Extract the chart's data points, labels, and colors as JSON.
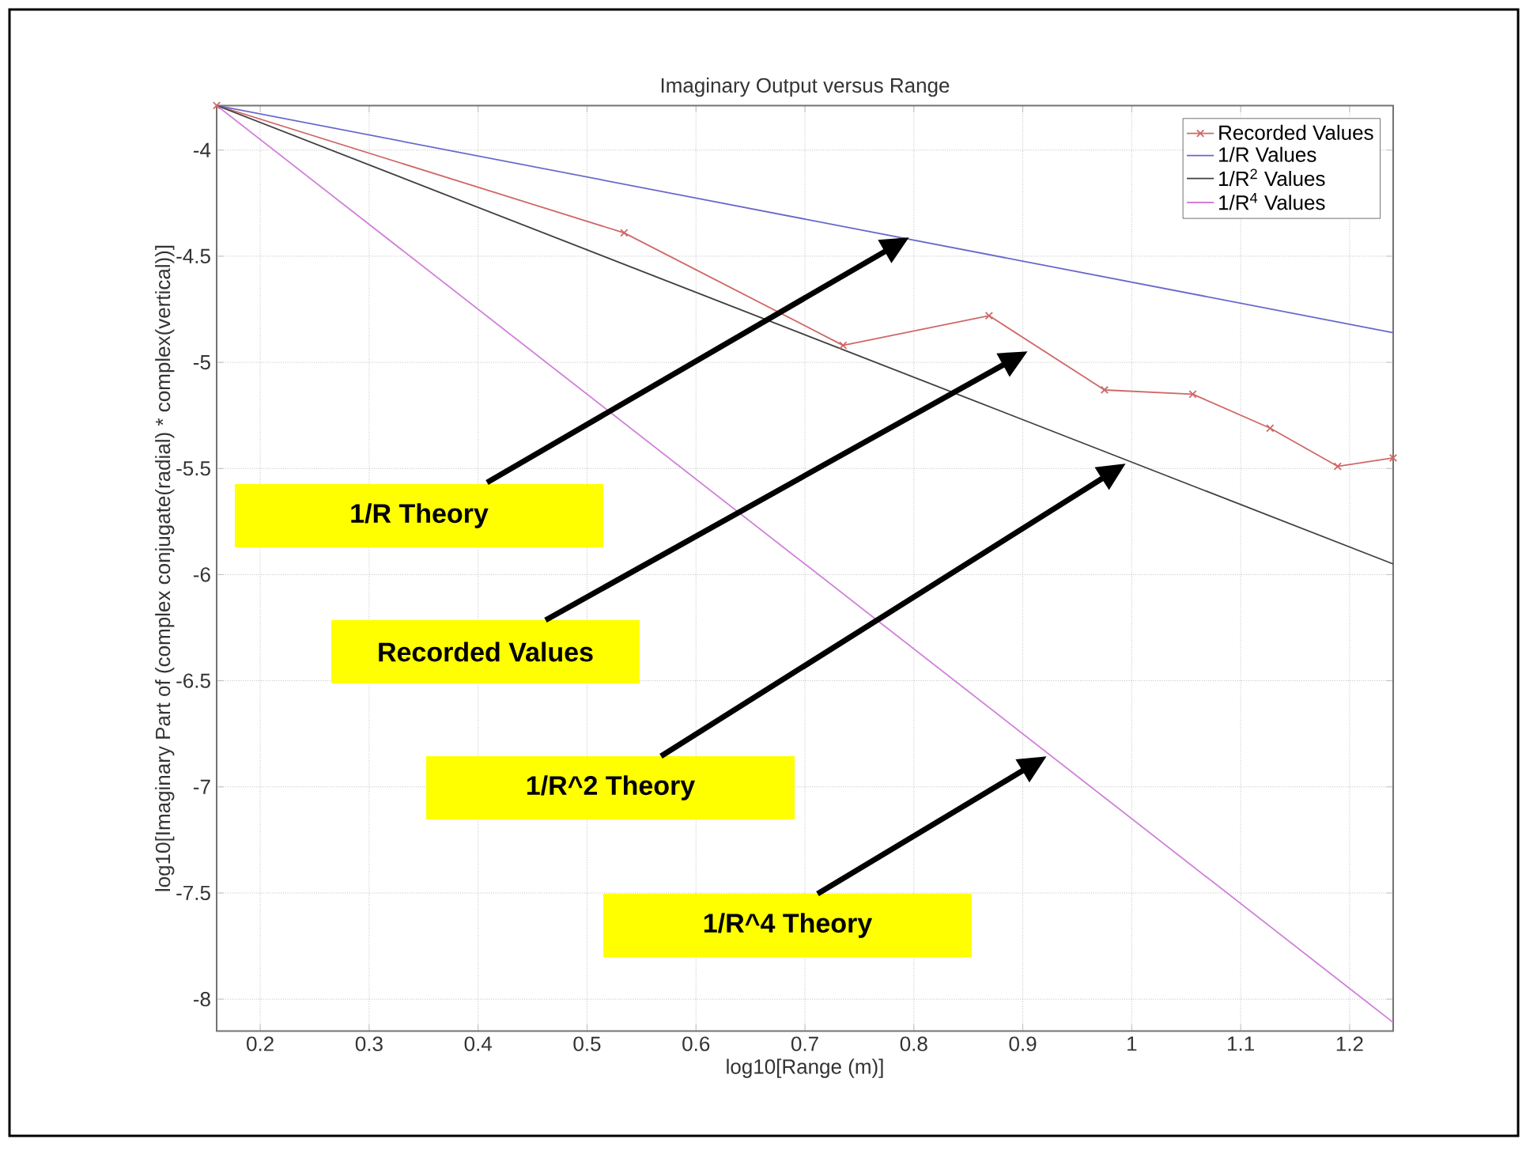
{
  "chart_data": {
    "type": "line",
    "title": "Imaginary Output versus Range",
    "xlabel": "log10[Range (m)]",
    "ylabel": "log10[Imaginary Part of (complex conjugate(radial) * complex(vertical))]",
    "xlim": [
      0.16,
      1.24
    ],
    "ylim": [
      -8.15,
      -3.79
    ],
    "xticks": [
      0.2,
      0.3,
      0.4,
      0.5,
      0.6,
      0.7,
      0.8,
      0.9,
      1,
      1.1,
      1.2
    ],
    "yticks": [
      -8,
      -7.5,
      -7,
      -6.5,
      -6,
      -5.5,
      -5,
      -4.5,
      -4
    ],
    "grid": true,
    "legend": "top right",
    "series": [
      {
        "name": "Recorded Values",
        "color": "#d06868",
        "marker": "cross",
        "x": [
          0.16,
          0.534,
          0.735,
          0.869,
          0.975,
          1.056,
          1.127,
          1.189,
          1.24
        ],
        "values": [
          -3.79,
          -4.39,
          -4.92,
          -4.78,
          -5.13,
          -5.15,
          -5.31,
          -5.49,
          -5.45
        ]
      },
      {
        "name": "1/R Values",
        "color": "#6868cc",
        "x": [
          0.16,
          1.24
        ],
        "values": [
          -3.79,
          -4.86
        ]
      },
      {
        "name": "1/R$^{2}$ Values",
        "color": "#404040",
        "x": [
          0.16,
          1.24
        ],
        "values": [
          -3.79,
          -5.95
        ]
      },
      {
        "name": "1/R$^{4}$ Values",
        "color": "#d080d8",
        "x": [
          0.16,
          1.24
        ],
        "values": [
          -3.79,
          -8.11
        ]
      }
    ],
    "annotations": [
      "1/R Theory",
      "Recorded Values",
      "1/R^2 Theory",
      "1/R^4 Theory"
    ]
  }
}
